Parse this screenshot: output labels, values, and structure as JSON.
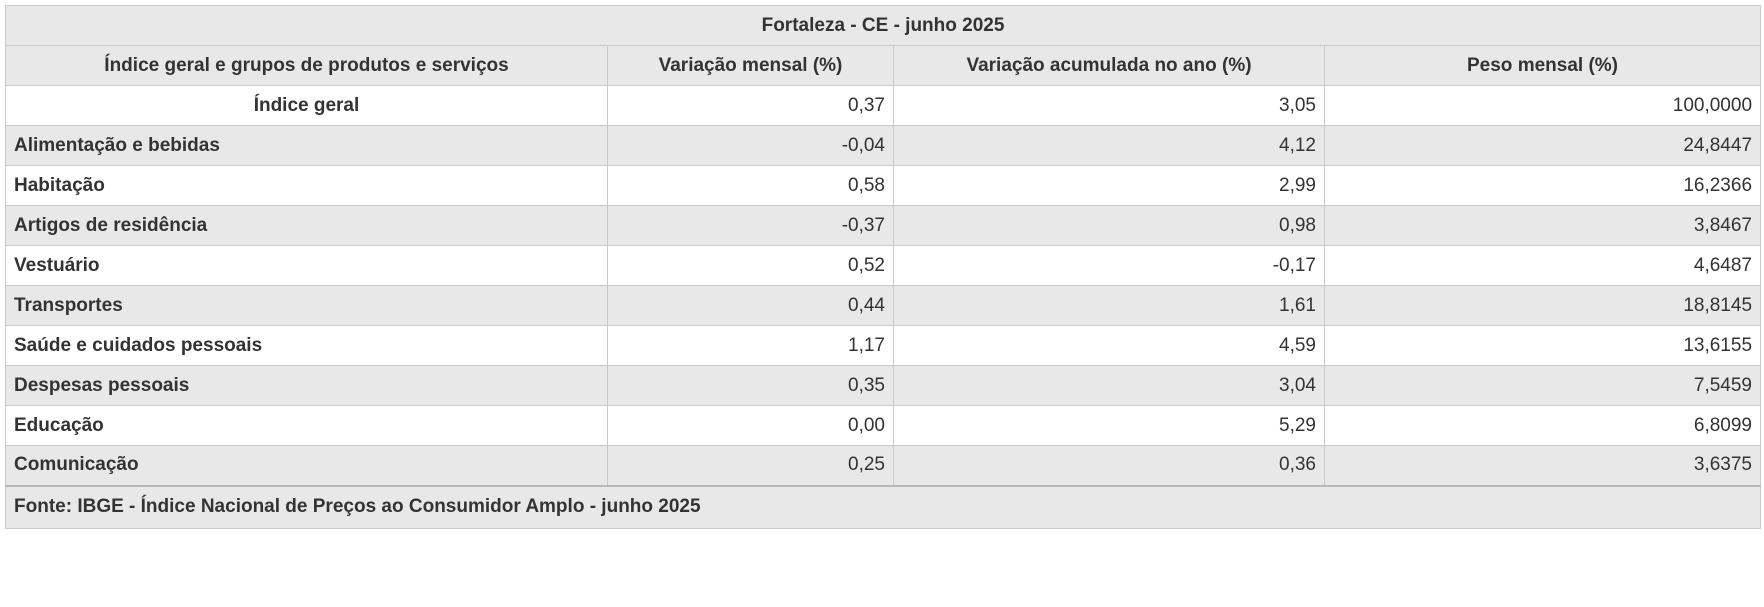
{
  "chart_data": {
    "type": "table",
    "title": "Fortaleza - CE - junho 2025",
    "columns": [
      "Índice geral e grupos de produtos e serviços",
      "Variação mensal (%)",
      "Variação acumulada no ano (%)",
      "Peso mensal (%)"
    ],
    "rows": [
      [
        "Índice geral",
        "0,37",
        "3,05",
        "100,0000"
      ],
      [
        "Alimentação e bebidas",
        "-0,04",
        "4,12",
        "24,8447"
      ],
      [
        "Habitação",
        "0,58",
        "2,99",
        "16,2366"
      ],
      [
        "Artigos de residência",
        "-0,37",
        "0,98",
        "3,8467"
      ],
      [
        "Vestuário",
        "0,52",
        "-0,17",
        "4,6487"
      ],
      [
        "Transportes",
        "0,44",
        "1,61",
        "18,8145"
      ],
      [
        "Saúde e cuidados pessoais",
        "1,17",
        "4,59",
        "13,6155"
      ],
      [
        "Despesas pessoais",
        "0,35",
        "3,04",
        "7,5459"
      ],
      [
        "Educação",
        "0,00",
        "5,29",
        "6,8099"
      ],
      [
        "Comunicação",
        "0,25",
        "0,36",
        "3,6375"
      ]
    ],
    "source": "Fonte: IBGE - Índice Nacional de Preços ao Consumidor Amplo - junho 2025"
  }
}
